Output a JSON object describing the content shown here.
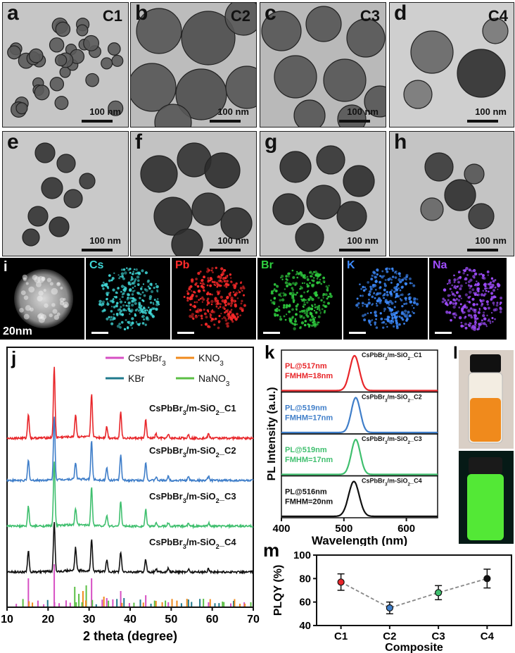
{
  "tem_panels": [
    {
      "letter": "a",
      "code": "C1",
      "scale": "100 nm"
    },
    {
      "letter": "b",
      "code": "C2",
      "scale": "100 nm"
    },
    {
      "letter": "c",
      "code": "C3",
      "scale": "100 nm"
    },
    {
      "letter": "d",
      "code": "C4",
      "scale": "100 nm"
    },
    {
      "letter": "e",
      "code": "",
      "scale": "100 nm"
    },
    {
      "letter": "f",
      "code": "",
      "scale": "100 nm"
    },
    {
      "letter": "g",
      "code": "",
      "scale": "100 nm"
    },
    {
      "letter": "h",
      "code": "",
      "scale": "100 nm"
    }
  ],
  "eds": {
    "letter": "i",
    "scale": "20nm",
    "maps": [
      {
        "element": "Cs",
        "color": "#3fd6d6"
      },
      {
        "element": "Pb",
        "color": "#ff2a2a"
      },
      {
        "element": "Br",
        "color": "#2fcf3f"
      },
      {
        "element": "K",
        "color": "#3d8bff"
      },
      {
        "element": "Na",
        "color": "#a04dff"
      }
    ]
  },
  "xrd": {
    "letter": "j",
    "legend": [
      {
        "name": "CsPbBr",
        "sub": "3",
        "color": "#d64fc3"
      },
      {
        "name": "KNO",
        "sub": "3",
        "color": "#f08a1c"
      },
      {
        "name": "KBr",
        "sub": "",
        "color": "#1f7a8c"
      },
      {
        "name": "NaNO",
        "sub": "3",
        "color": "#5bbf45"
      }
    ],
    "xlabel": "2 theta (degree)",
    "xticks": [
      "10",
      "20",
      "30",
      "40",
      "50",
      "60",
      "70"
    ]
  },
  "chart_data": [
    {
      "type": "line",
      "panel": "j",
      "xlabel": "2 theta (degree)",
      "xlim": [
        10,
        70
      ],
      "peaks": [
        15.2,
        21.5,
        26.7,
        30.6,
        34.3,
        37.7,
        43.8,
        46.3,
        49.3,
        54.2,
        59.1
      ],
      "series": [
        {
          "name": "CsPbBr3/m-SiO2_C1",
          "color": "#e8262a",
          "peak_heights": [
            0.35,
            1.0,
            0.32,
            0.62,
            0.16,
            0.38,
            0.26,
            0.06,
            0.05,
            0.05,
            0.06
          ]
        },
        {
          "name": "CsPbBr3/m-SiO2_C2",
          "color": "#3f7ec9",
          "peak_heights": [
            0.3,
            0.95,
            0.25,
            0.58,
            0.18,
            0.38,
            0.28,
            0.05,
            0.06,
            0.05,
            0.06
          ]
        },
        {
          "name": "CsPbBr3/m-SiO2_C3",
          "color": "#3fbf6e",
          "peak_heights": [
            0.3,
            0.95,
            0.25,
            0.58,
            0.16,
            0.37,
            0.25,
            0.05,
            0.05,
            0.04,
            0.05
          ]
        },
        {
          "name": "CsPbBr3/m-SiO2_C4",
          "color": "#111111",
          "peak_heights": [
            0.3,
            0.7,
            0.33,
            0.46,
            0.17,
            0.28,
            0.18,
            0.05,
            0.05,
            0.04,
            0.05
          ]
        }
      ]
    },
    {
      "type": "line",
      "panel": "k",
      "xlabel": "Wavelength (nm)",
      "ylabel": "PL Intensity (a.u.)",
      "xlim": [
        400,
        650
      ],
      "xticks": [
        "400",
        "500",
        "600"
      ],
      "series": [
        {
          "name": "CsPbBr3/m-SiO2_C1",
          "color": "#e8262a",
          "peak": 517,
          "fwhm": 18,
          "peak_label": "PL@517nm",
          "fwhm_label": "FMHM=18nm"
        },
        {
          "name": "CsPbBr3/m-SiO2_C2",
          "color": "#3f7ec9",
          "peak": 519,
          "fwhm": 17,
          "peak_label": "PL@519nm",
          "fwhm_label": "FMHM=17nm"
        },
        {
          "name": "CsPbBr3/m-SiO2_C3",
          "color": "#3fbf6e",
          "peak": 519,
          "fwhm": 17,
          "peak_label": "PL@519nm",
          "fwhm_label": "FMHM=17nm"
        },
        {
          "name": "CsPbBr3/m-SiO2_C4",
          "color": "#111111",
          "peak": 516,
          "fwhm": 20,
          "peak_label": "PL@516nm",
          "fwhm_label": "FMHM=20nm"
        }
      ]
    },
    {
      "type": "scatter",
      "panel": "m",
      "xlabel": "Composite",
      "ylabel": "PLQY (%)",
      "categories": [
        "C1",
        "C2",
        "C3",
        "C4"
      ],
      "values": [
        77,
        55,
        68,
        80
      ],
      "errors": [
        7,
        5,
        6,
        8
      ],
      "colors": [
        "#e8262a",
        "#3f7ec9",
        "#3fbf6e",
        "#111111"
      ],
      "ylim": [
        40,
        100
      ],
      "yticks": [
        "40",
        "60",
        "80",
        "100"
      ]
    }
  ],
  "labels": {
    "k": "k",
    "l": "l",
    "m": "m",
    "series_base": "CsPbBr",
    "series_mid": "/m-SiO",
    "series_suffixes": [
      "_C1",
      "_C2",
      "_C3",
      "_C4"
    ]
  }
}
